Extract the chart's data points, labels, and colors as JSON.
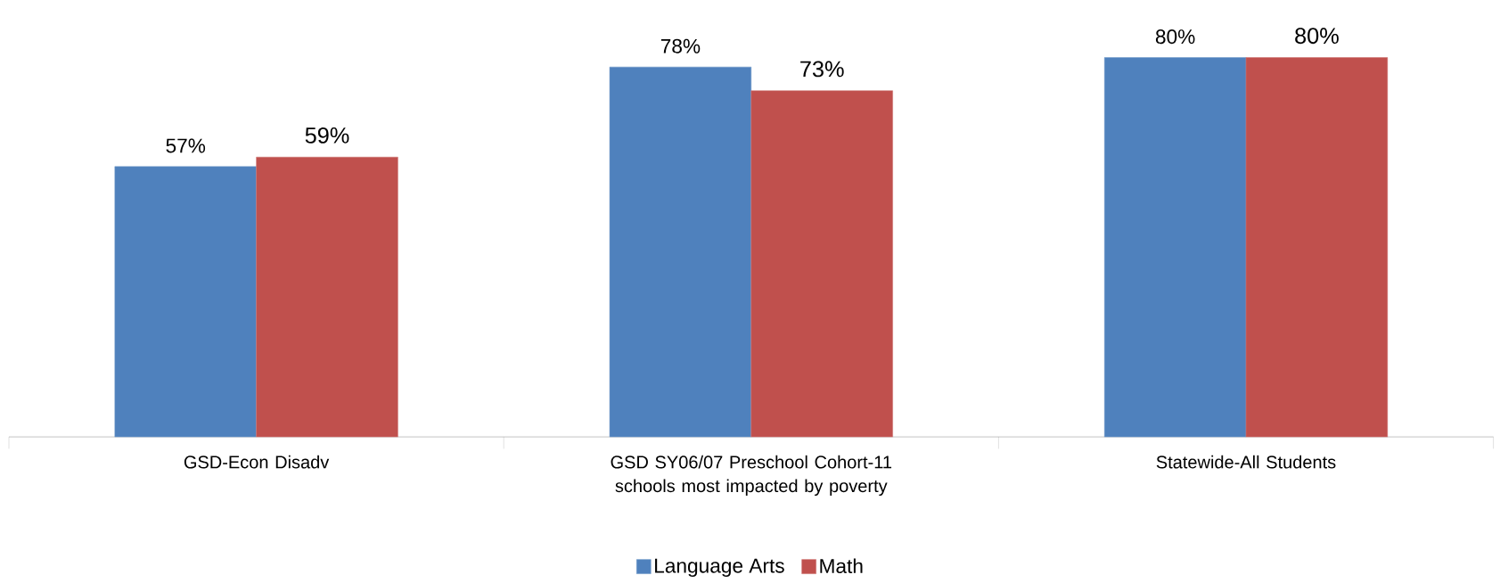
{
  "chart_data": {
    "type": "bar",
    "categories": [
      "GSD-Econ Disadv",
      "GSD SY06/07 Preschool Cohort-11 schools most impacted by poverty",
      "Statewide-All Students"
    ],
    "series": [
      {
        "name": "Language Arts",
        "color": "#4f81bd",
        "values": [
          57,
          78,
          80
        ],
        "value_labels": [
          "57%",
          "78%",
          "80%"
        ]
      },
      {
        "name": "Math",
        "color": "#c0504d",
        "values": [
          59,
          73,
          80
        ],
        "value_labels": [
          "59%",
          "73%",
          "80%"
        ]
      }
    ],
    "legend": "bottom"
  }
}
